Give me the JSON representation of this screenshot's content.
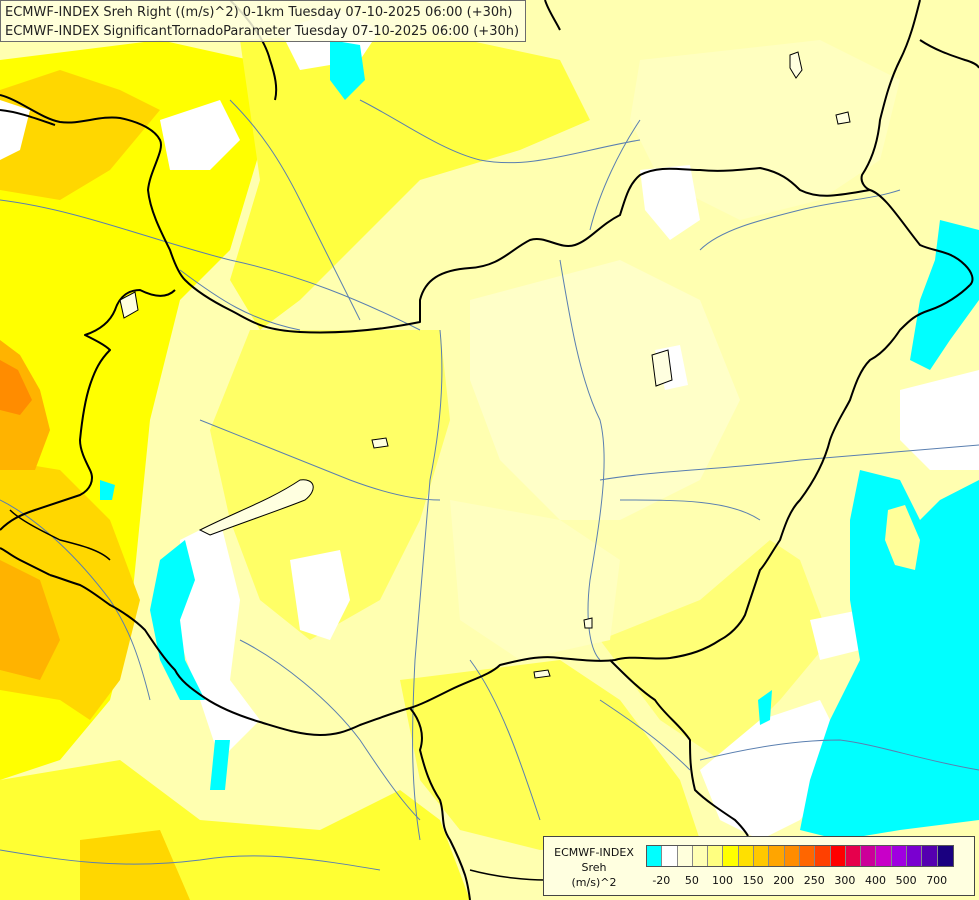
{
  "header": {
    "line1": "ECMWF-INDEX Sreh Right ((m/s)^2) 0-1km Tuesday 07-10-2025 06:00 (+30h)",
    "line2": "ECMWF-INDEX SignificantTornadoParameter Tuesday 07-10-2025 06:00 (+30h)"
  },
  "legend": {
    "title_line1": "ECMWF-INDEX",
    "title_line2": "Sreh",
    "title_line3": "(m/s)^2",
    "colors": [
      "#00ffff",
      "#ffffff",
      "#ffffdc",
      "#ffffb4",
      "#ffff80",
      "#ffff00",
      "#ffe000",
      "#ffc800",
      "#ffa500",
      "#ff8c00",
      "#ff6600",
      "#ff4000",
      "#ff0000",
      "#e6004c",
      "#cc0099",
      "#c800c8",
      "#a000e0",
      "#7a00d0",
      "#5500b0",
      "#1a0080"
    ],
    "ticks": [
      "-20",
      "50",
      "100",
      "150",
      "200",
      "250",
      "300",
      "400",
      "500",
      "700"
    ]
  },
  "colors": {
    "cyan": "#00ffff",
    "white": "#ffffff",
    "pale_yellow": "#ffffc0",
    "light_yellow": "#ffff99",
    "yellow": "#ffff00",
    "gold": "#ffd700",
    "orange": "#ffaa00",
    "dark_orange": "#ff8000",
    "border": "#000000",
    "river": "#5a7fb0"
  }
}
